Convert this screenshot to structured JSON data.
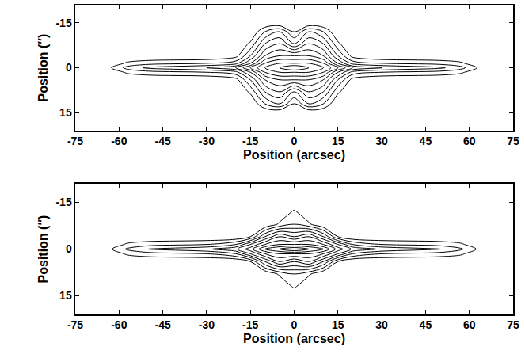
{
  "chart_data": [
    {
      "type": "contour",
      "color": "#000000",
      "grid": false,
      "xlabel": "Position (arcsec)",
      "ylabel": "Position (″)",
      "xlim": [
        -75,
        75
      ],
      "xticks": [
        -75,
        -60,
        -45,
        -30,
        -15,
        0,
        15,
        30,
        45,
        60,
        75
      ],
      "ylim": [
        21,
        -21
      ],
      "yticks": [
        -15,
        0,
        15
      ],
      "contour_levels": {
        "start": 0.5,
        "end": 5.5,
        "size": 0.5
      },
      "x": [
        -75,
        -65,
        -57,
        -50,
        -40,
        -30,
        -20,
        -15,
        -10,
        -5,
        0,
        5,
        10,
        15,
        20,
        30,
        40,
        50,
        57,
        65,
        75
      ],
      "y": [
        -20,
        -15,
        -12,
        -8,
        -4,
        -1.5,
        0,
        1.5,
        4,
        8,
        12,
        15,
        20
      ],
      "z": [
        [
          0,
          0,
          0,
          0,
          0,
          0,
          0,
          0,
          0,
          0,
          0,
          0,
          0,
          0,
          0,
          0,
          0,
          0,
          0,
          0,
          0
        ],
        [
          0,
          0,
          0,
          0,
          0,
          0,
          0,
          0,
          0,
          0,
          0,
          0,
          0,
          0,
          0,
          0,
          0,
          0,
          0,
          0,
          0
        ],
        [
          0,
          0,
          0,
          0,
          0,
          0,
          0,
          0,
          1,
          1.5,
          0.5,
          1.5,
          1,
          0,
          0,
          0,
          0,
          0,
          0,
          0,
          0
        ],
        [
          0,
          0,
          0,
          0,
          0,
          0,
          0,
          0.6,
          2,
          2.5,
          1.5,
          2.5,
          2,
          0.6,
          0,
          0,
          0,
          0,
          0,
          0,
          0
        ],
        [
          0,
          0,
          0,
          0,
          0,
          0,
          0.3,
          1.5,
          3,
          3.5,
          3.5,
          3.5,
          3,
          1.5,
          0.3,
          0,
          0,
          0,
          0,
          0,
          0
        ],
        [
          0,
          0,
          0.6,
          0.8,
          0.9,
          1,
          1.3,
          2.5,
          4,
          4.5,
          4.5,
          4.5,
          4,
          2.5,
          1.3,
          1,
          0.9,
          0.8,
          0.6,
          0,
          0
        ],
        [
          0,
          0.2,
          1.2,
          1.6,
          1.8,
          2,
          2.5,
          3.5,
          4.5,
          5,
          5.5,
          5,
          4.5,
          3.5,
          2.5,
          2,
          1.8,
          1.6,
          1.2,
          0.2,
          0
        ],
        [
          0,
          0,
          0.6,
          0.8,
          0.9,
          1,
          1.3,
          2.5,
          4,
          4.5,
          4.5,
          4.5,
          4,
          2.5,
          1.3,
          1,
          0.9,
          0.8,
          0.6,
          0,
          0
        ],
        [
          0,
          0,
          0,
          0,
          0,
          0,
          0.3,
          1.5,
          3,
          3.5,
          3.5,
          3.5,
          3,
          1.5,
          0.3,
          0,
          0,
          0,
          0,
          0,
          0
        ],
        [
          0,
          0,
          0,
          0,
          0,
          0,
          0,
          0.6,
          2,
          2.5,
          1.5,
          2.5,
          2,
          0.6,
          0,
          0,
          0,
          0,
          0,
          0,
          0
        ],
        [
          0,
          0,
          0,
          0,
          0,
          0,
          0,
          0,
          1,
          1.5,
          0.5,
          1.5,
          1,
          0,
          0,
          0,
          0,
          0,
          0,
          0,
          0
        ],
        [
          0,
          0,
          0,
          0,
          0,
          0,
          0,
          0,
          0,
          0,
          0,
          0,
          0,
          0,
          0,
          0,
          0,
          0,
          0,
          0,
          0
        ],
        [
          0,
          0,
          0,
          0,
          0,
          0,
          0,
          0,
          0,
          0,
          0,
          0,
          0,
          0,
          0,
          0,
          0,
          0,
          0,
          0,
          0
        ]
      ]
    },
    {
      "type": "contour",
      "color": "#000000",
      "grid": false,
      "xlabel": "Position (arcsec)",
      "ylabel": "Position (″)",
      "xlim": [
        -75,
        75
      ],
      "xticks": [
        -75,
        -60,
        -45,
        -30,
        -15,
        0,
        15,
        30,
        45,
        60,
        75
      ],
      "ylim": [
        21,
        -21
      ],
      "yticks": [
        -15,
        0,
        15
      ],
      "contour_levels": {
        "start": 0.5,
        "end": 5.5,
        "size": 0.5
      },
      "x": [
        -75,
        -65,
        -57,
        -50,
        -40,
        -30,
        -20,
        -15,
        -10,
        -5,
        0,
        5,
        10,
        15,
        20,
        30,
        40,
        50,
        57,
        65,
        75
      ],
      "y": [
        -20,
        -15,
        -12,
        -8,
        -4,
        -1.5,
        0,
        1.5,
        4,
        8,
        12,
        15,
        20
      ],
      "z": [
        [
          0,
          0,
          0,
          0,
          0,
          0,
          0,
          0,
          0,
          0,
          0,
          0,
          0,
          0,
          0,
          0,
          0,
          0,
          0,
          0,
          0
        ],
        [
          0,
          0,
          0,
          0,
          0,
          0,
          0,
          0,
          0,
          0,
          0,
          0,
          0,
          0,
          0,
          0,
          0,
          0,
          0,
          0,
          0
        ],
        [
          0,
          0,
          0,
          0,
          0,
          0,
          0,
          0,
          0,
          0,
          0.6,
          0,
          0,
          0,
          0,
          0,
          0,
          0,
          0,
          0,
          0
        ],
        [
          0,
          0,
          0,
          0,
          0,
          0,
          0,
          0,
          0,
          0.6,
          1,
          0.6,
          0,
          0,
          0,
          0,
          0,
          0,
          0,
          0,
          0
        ],
        [
          0,
          0,
          0,
          0,
          0,
          0,
          0,
          0.5,
          2,
          3,
          2.5,
          3,
          2,
          0.5,
          0,
          0,
          0,
          0,
          0,
          0,
          0
        ],
        [
          0,
          0,
          0.6,
          0.8,
          0.9,
          1,
          1.5,
          2.5,
          3.5,
          4,
          4,
          4,
          3.5,
          2.5,
          1.5,
          1,
          0.9,
          0.8,
          0.6,
          0,
          0
        ],
        [
          0,
          0.2,
          1.1,
          1.5,
          1.7,
          1.9,
          2.4,
          3.3,
          4.5,
          5,
          5.5,
          5,
          4.5,
          3.3,
          2.4,
          1.9,
          1.7,
          1.5,
          1.1,
          0.2,
          0
        ],
        [
          0,
          0,
          0.6,
          0.8,
          0.9,
          1,
          1.5,
          2.5,
          3.5,
          4,
          4,
          4,
          3.5,
          2.5,
          1.5,
          1,
          0.9,
          0.8,
          0.6,
          0,
          0
        ],
        [
          0,
          0,
          0,
          0,
          0,
          0,
          0,
          0.5,
          2,
          3,
          2.5,
          3,
          2,
          0.5,
          0,
          0,
          0,
          0,
          0,
          0,
          0
        ],
        [
          0,
          0,
          0,
          0,
          0,
          0,
          0,
          0,
          0,
          0.6,
          1,
          0.6,
          0,
          0,
          0,
          0,
          0,
          0,
          0,
          0,
          0
        ],
        [
          0,
          0,
          0,
          0,
          0,
          0,
          0,
          0,
          0,
          0,
          0.6,
          0,
          0,
          0,
          0,
          0,
          0,
          0,
          0,
          0,
          0
        ],
        [
          0,
          0,
          0,
          0,
          0,
          0,
          0,
          0,
          0,
          0,
          0,
          0,
          0,
          0,
          0,
          0,
          0,
          0,
          0,
          0,
          0
        ],
        [
          0,
          0,
          0,
          0,
          0,
          0,
          0,
          0,
          0,
          0,
          0,
          0,
          0,
          0,
          0,
          0,
          0,
          0,
          0,
          0,
          0
        ]
      ]
    }
  ]
}
